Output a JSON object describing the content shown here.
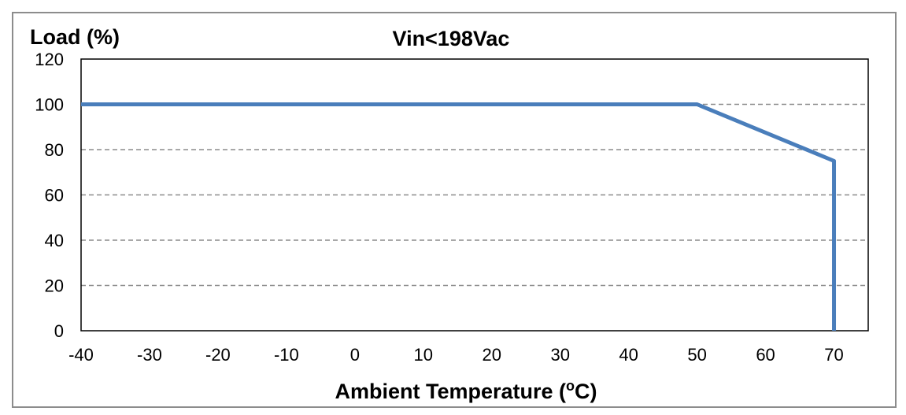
{
  "chart_data": {
    "type": "line",
    "title": "Vin<198Vac",
    "ylabel": "Load (%)",
    "xlabel_main": "Ambient Temperature (",
    "xlabel_sup": "o",
    "xlabel_end": "C)",
    "xlim": [
      -40,
      75
    ],
    "ylim": [
      0,
      120
    ],
    "xticks": [
      -40,
      -30,
      -20,
      -10,
      0,
      10,
      20,
      30,
      40,
      50,
      60,
      70
    ],
    "yticks": [
      0,
      20,
      40,
      60,
      80,
      100,
      120
    ],
    "grid": "horizontal dashed",
    "series": [
      {
        "x": [
          -40,
          50,
          70,
          70
        ],
        "y": [
          100,
          100,
          75,
          0
        ]
      }
    ],
    "line_color": "#4a7ebb",
    "grid_color": "#8c8c8c"
  }
}
